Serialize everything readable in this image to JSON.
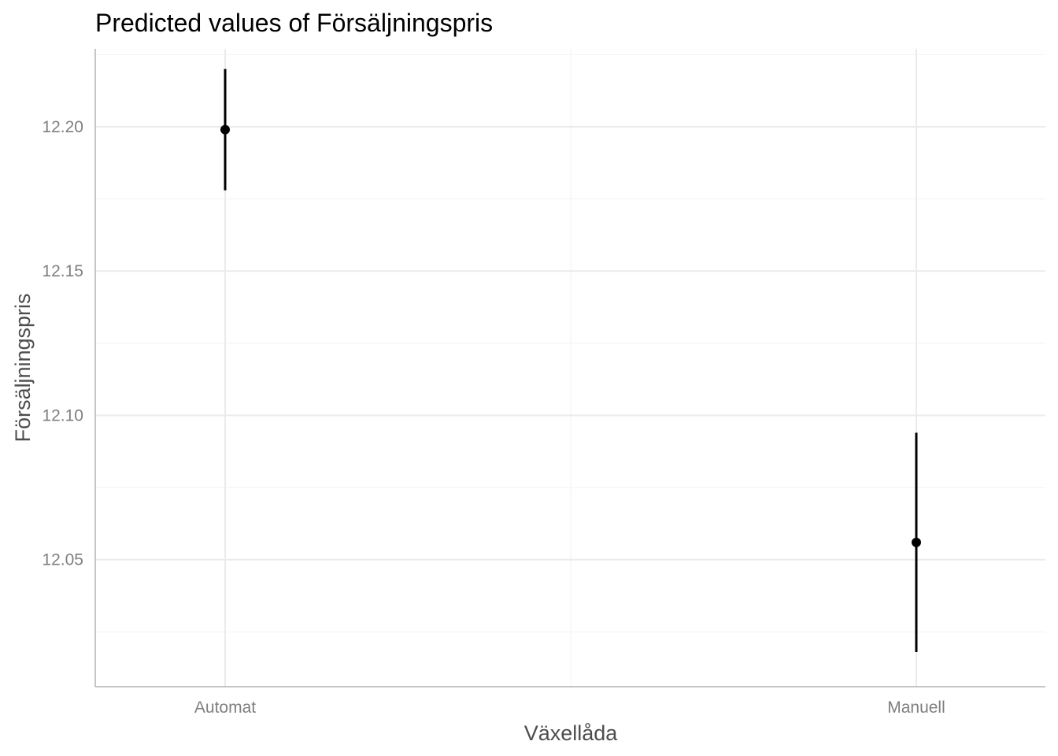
{
  "chart_data": {
    "type": "scatter",
    "title": "Predicted values of Försäljningspris",
    "xlabel": "Växellåda",
    "ylabel": "Försäljningspris",
    "categories": [
      "Automat",
      "Manuell"
    ],
    "series": [
      {
        "values": [
          12.199,
          12.056
        ],
        "lower": [
          12.178,
          12.018
        ],
        "upper": [
          12.22,
          12.094
        ]
      }
    ],
    "ylim": [
      12.006,
      12.227
    ],
    "yticks": [
      12.05,
      12.1,
      12.15,
      12.2
    ],
    "ytick_labels": [
      "12.05",
      "12.10",
      "12.15",
      "12.20"
    ],
    "grid": true,
    "legend": "none",
    "colors": {
      "point": "#000000",
      "grid": "#ebebeb",
      "axis_text": "#7f7f7f",
      "axis_title": "#4d4d4d"
    }
  }
}
